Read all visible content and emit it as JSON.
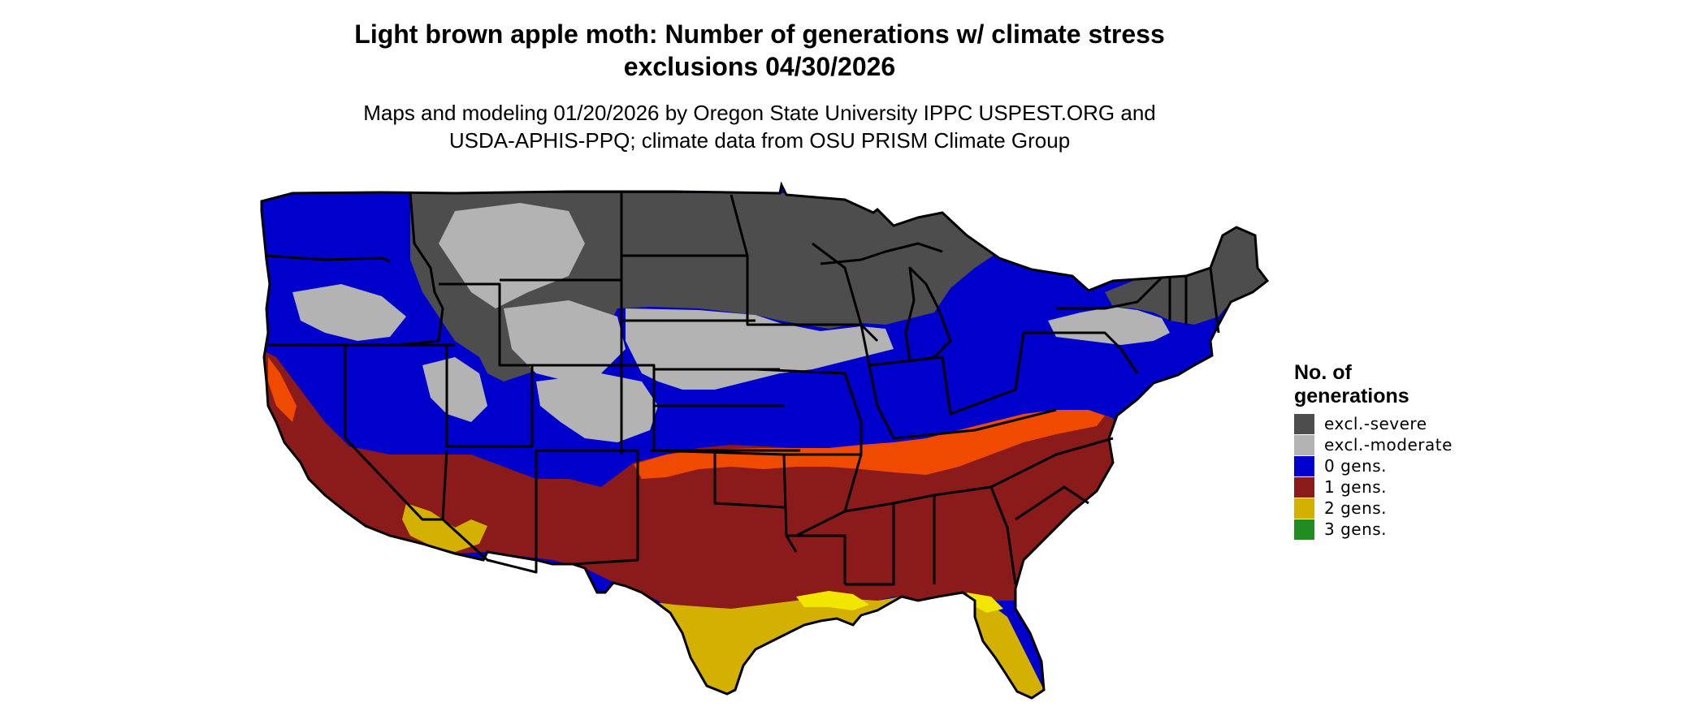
{
  "title": {
    "line1": "Light brown apple moth: Number of generations w/ climate stress",
    "line2": "exclusions 04/30/2026"
  },
  "subtitle": {
    "line1": "Maps and modeling 01/20/2026 by Oregon State University IPPC USPEST.ORG and",
    "line2": "USDA-APHIS-PPQ; climate data from OSU PRISM Climate Group"
  },
  "legend": {
    "title_line1": "No. of",
    "title_line2": "generations",
    "items": [
      {
        "label": "excl.-severe",
        "color": "#4d4d4d"
      },
      {
        "label": "excl.-moderate",
        "color": "#b3b3b3"
      },
      {
        "label": "0 gens.",
        "color": "#0000cc"
      },
      {
        "label": "1 gens.",
        "color": "#8b1a1a"
      },
      {
        "label": "2 gens.",
        "color": "#d4b000"
      },
      {
        "label": "3 gens.",
        "color": "#228b22"
      }
    ]
  },
  "colors": {
    "transition_orange": "#f04a00",
    "bright_yellow": "#f2e600",
    "state_border": "#000000"
  }
}
